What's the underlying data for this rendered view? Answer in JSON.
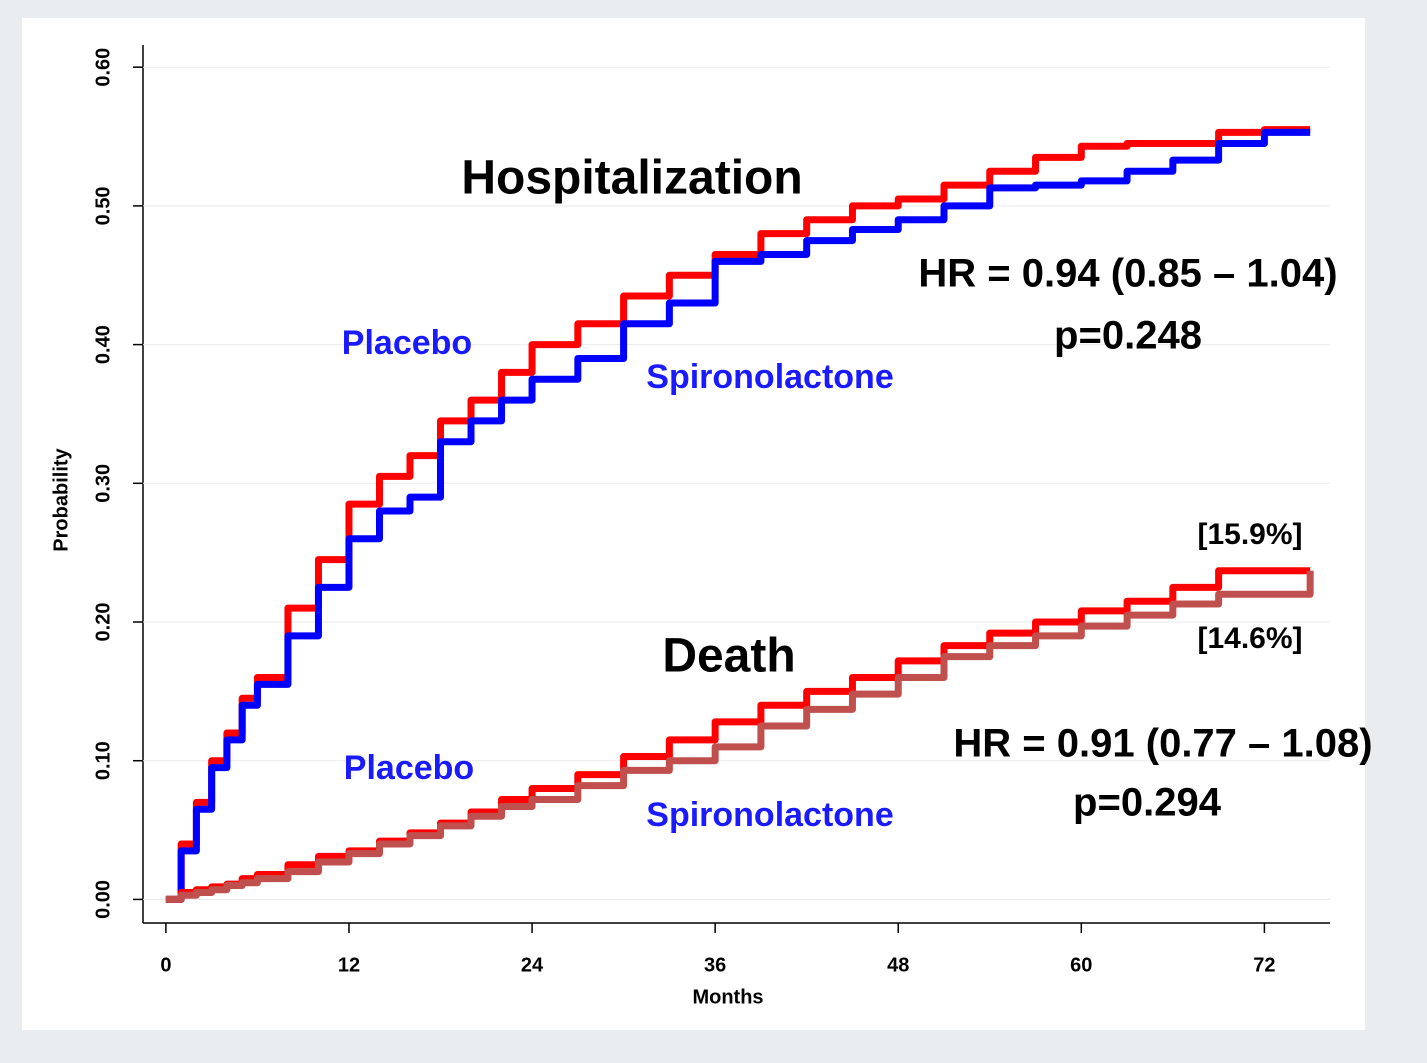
{
  "chart_data": {
    "type": "line",
    "xlabel": "Months",
    "ylabel": "Probability",
    "x": [
      0,
      1,
      2,
      3,
      4,
      5,
      6,
      8,
      10,
      12,
      14,
      16,
      18,
      20,
      22,
      24,
      27,
      30,
      33,
      36,
      39,
      42,
      45,
      48,
      51,
      54,
      57,
      60,
      63,
      66,
      69,
      72,
      75
    ],
    "series": [
      {
        "name": "Placebo",
        "color": "#ff0000",
        "values": [
          0,
          0.04,
          0.07,
          0.1,
          0.12,
          0.145,
          0.16,
          0.21,
          0.245,
          0.285,
          0.305,
          0.32,
          0.345,
          0.36,
          0.38,
          0.4,
          0.415,
          0.435,
          0.45,
          0.465,
          0.48,
          0.49,
          0.5,
          0.505,
          0.515,
          0.525,
          0.535,
          0.543,
          0.545,
          0.545,
          0.553,
          0.555,
          0.555
        ]
      },
      {
        "name": "Spironolactone",
        "color": "#0000ff",
        "values": [
          0,
          0.035,
          0.065,
          0.095,
          0.115,
          0.14,
          0.155,
          0.19,
          0.225,
          0.26,
          0.28,
          0.29,
          0.33,
          0.345,
          0.36,
          0.375,
          0.39,
          0.415,
          0.43,
          0.46,
          0.465,
          0.475,
          0.483,
          0.49,
          0.5,
          0.513,
          0.515,
          0.518,
          0.525,
          0.533,
          0.545,
          0.553,
          0.553
        ]
      },
      {
        "name": "Placebo",
        "color": "#ff0000",
        "values": [
          0,
          0.005,
          0.007,
          0.009,
          0.011,
          0.015,
          0.018,
          0.025,
          0.031,
          0.035,
          0.042,
          0.048,
          0.055,
          0.063,
          0.072,
          0.08,
          0.09,
          0.103,
          0.115,
          0.128,
          0.14,
          0.15,
          0.16,
          0.172,
          0.183,
          0.192,
          0.2,
          0.208,
          0.215,
          0.225,
          0.237,
          0.237,
          0.237
        ]
      },
      {
        "name": "Spironolactone",
        "color": "#c0504d",
        "values": [
          0,
          0.003,
          0.005,
          0.007,
          0.01,
          0.012,
          0.015,
          0.02,
          0.027,
          0.033,
          0.04,
          0.046,
          0.053,
          0.06,
          0.067,
          0.072,
          0.082,
          0.093,
          0.1,
          0.11,
          0.125,
          0.137,
          0.148,
          0.16,
          0.175,
          0.183,
          0.19,
          0.197,
          0.205,
          0.213,
          0.22,
          0.22,
          0.237
        ]
      }
    ],
    "series_label_color": "#1a1aff",
    "annotations": [
      "Hospitalization",
      "HR = 0.94 (0.85 – 1.04)",
      "p=0.248",
      "Death",
      "HR = 0.91 (0.77 – 1.08)",
      "p=0.294",
      "[15.9%]",
      "[14.6%]"
    ],
    "xlim": [
      -1.5,
      76.3
    ],
    "ylim": [
      -0.017,
      0.616
    ],
    "xticks": [
      0,
      12,
      24,
      36,
      48,
      60,
      72
    ],
    "yticks": [
      {
        "value": 0,
        "label": "0.00"
      },
      {
        "value": 0.1,
        "label": "0.10"
      },
      {
        "value": 0.2,
        "label": "0.20"
      },
      {
        "value": 0.3,
        "label": "0.30"
      },
      {
        "value": 0.4,
        "label": "0.40"
      },
      {
        "value": 0.5,
        "label": "0.50"
      },
      {
        "value": 0.6,
        "label": "0.60"
      }
    ],
    "grid": true
  }
}
